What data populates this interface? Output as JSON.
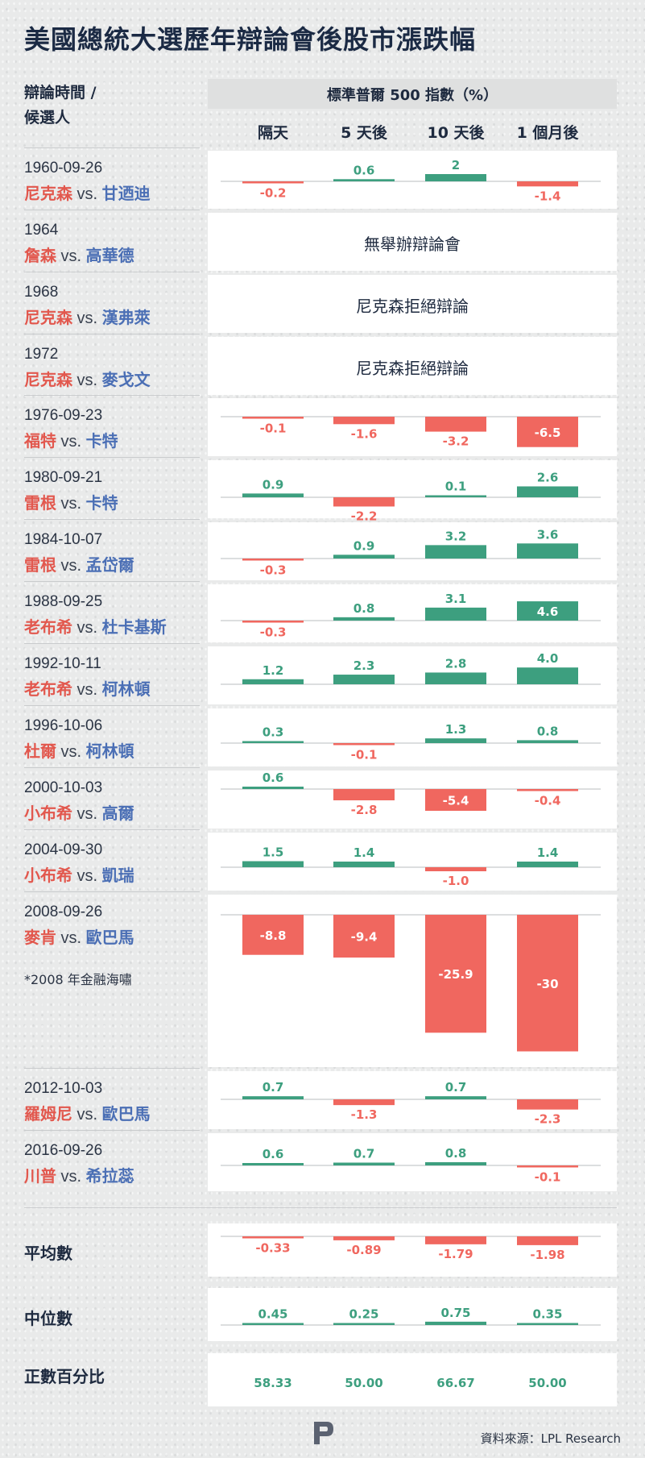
{
  "title": "美國總統大選歷年辯論會後股市漲跌幅",
  "header": {
    "left_line1": "辯論時間 /",
    "left_line2": "候選人",
    "band": "標準普爾 500 指數（%）",
    "columns": [
      "隔天",
      "5 天後",
      "10 天後",
      "1 個月後"
    ]
  },
  "vs_text": "vs.",
  "note_2008": "*2008 年金融海嘯",
  "chart_data": {
    "type": "bar",
    "title": "美國總統大選歷年辯論會後股市漲跌幅",
    "ylabel": "標準普爾 500 指數（%）",
    "categories": [
      "隔天",
      "5 天後",
      "10 天後",
      "1 個月後"
    ],
    "colors": {
      "positive": "#3d9f7f",
      "negative": "#f0675f",
      "baseline": "#b9bcbf"
    },
    "rows": [
      {
        "date": "1960-09-26",
        "rep": "尼克森",
        "dem": "甘迺迪",
        "values": [
          -0.2,
          0.6,
          2,
          -1.4
        ],
        "labels": [
          "-0.2",
          "0.6",
          "2",
          "-1.4"
        ]
      },
      {
        "date": "1964",
        "rep": "詹森",
        "dem": "高華德",
        "message": "無舉辦辯論會"
      },
      {
        "date": "1968",
        "rep": "尼克森",
        "dem": "漢弗萊",
        "message": "尼克森拒絕辯論"
      },
      {
        "date": "1972",
        "rep": "尼克森",
        "dem": "麥戈文",
        "message": "尼克森拒絕辯論"
      },
      {
        "date": "1976-09-23",
        "rep": "福特",
        "dem": "卡特",
        "values": [
          -0.1,
          -1.6,
          -3.2,
          -6.5
        ],
        "labels": [
          "-0.1",
          "-1.6",
          "-3.2",
          "-6.5"
        ]
      },
      {
        "date": "1980-09-21",
        "rep": "雷根",
        "dem": "卡特",
        "values": [
          0.9,
          -2.2,
          0.1,
          2.6
        ],
        "labels": [
          "0.9",
          "-2.2",
          "0.1",
          "2.6"
        ]
      },
      {
        "date": "1984-10-07",
        "rep": "雷根",
        "dem": "孟岱爾",
        "values": [
          -0.3,
          0.9,
          3.2,
          3.6
        ],
        "labels": [
          "-0.3",
          "0.9",
          "3.2",
          "3.6"
        ]
      },
      {
        "date": "1988-09-25",
        "rep": "老布希",
        "dem": "杜卡基斯",
        "values": [
          -0.3,
          0.8,
          3.1,
          4.6
        ],
        "labels": [
          "-0.3",
          "0.8",
          "3.1",
          "4.6"
        ]
      },
      {
        "date": "1992-10-11",
        "rep": "老布希",
        "dem": "柯林頓",
        "values": [
          1.2,
          2.3,
          2.8,
          4.0
        ],
        "labels": [
          "1.2",
          "2.3",
          "2.8",
          "4.0"
        ]
      },
      {
        "date": "1996-10-06",
        "rep": "杜爾",
        "dem": "柯林頓",
        "values": [
          0.3,
          -0.1,
          1.3,
          0.8
        ],
        "labels": [
          "0.3",
          "-0.1",
          "1.3",
          "0.8"
        ]
      },
      {
        "date": "2000-10-03",
        "rep": "小布希",
        "dem": "高爾",
        "values": [
          0.6,
          -2.8,
          -5.4,
          -0.4
        ],
        "labels": [
          "0.6",
          "-2.8",
          "-5.4",
          "-0.4"
        ]
      },
      {
        "date": "2004-09-30",
        "rep": "小布希",
        "dem": "凱瑞",
        "values": [
          1.5,
          1.4,
          -1.0,
          1.4
        ],
        "labels": [
          "1.5",
          "1.4",
          "-1.0",
          "1.4"
        ]
      },
      {
        "date": "2008-09-26",
        "rep": "麥肯",
        "dem": "歐巴馬",
        "values": [
          -8.8,
          -9.4,
          -25.9,
          -30
        ],
        "labels": [
          "-8.8",
          "-9.4",
          "-25.9",
          "-30"
        ]
      },
      {
        "date": "2012-10-03",
        "rep": "羅姆尼",
        "dem": "歐巴馬",
        "values": [
          0.7,
          -1.3,
          0.7,
          -2.3
        ],
        "labels": [
          "0.7",
          "-1.3",
          "0.7",
          "-2.3"
        ]
      },
      {
        "date": "2016-09-26",
        "rep": "川普",
        "dem": "希拉蕊",
        "values": [
          0.6,
          0.7,
          0.8,
          -0.1
        ],
        "labels": [
          "0.6",
          "0.7",
          "0.8",
          "-0.1"
        ]
      }
    ],
    "summary": [
      {
        "label": "平均數",
        "values": [
          -0.33,
          -0.89,
          -1.79,
          -1.98
        ],
        "labels": [
          "-0.33",
          "-0.89",
          "-1.79",
          "-1.98"
        ]
      },
      {
        "label": "中位數",
        "values": [
          0.45,
          0.25,
          0.75,
          0.35
        ],
        "labels": [
          "0.45",
          "0.25",
          "0.75",
          "0.35"
        ]
      },
      {
        "label": "正數百分比",
        "labels": [
          "58.33",
          "50.00",
          "66.67",
          "50.00"
        ]
      }
    ]
  },
  "logo_icon": "p-logo-icon",
  "source": "資料來源：LPL Research"
}
